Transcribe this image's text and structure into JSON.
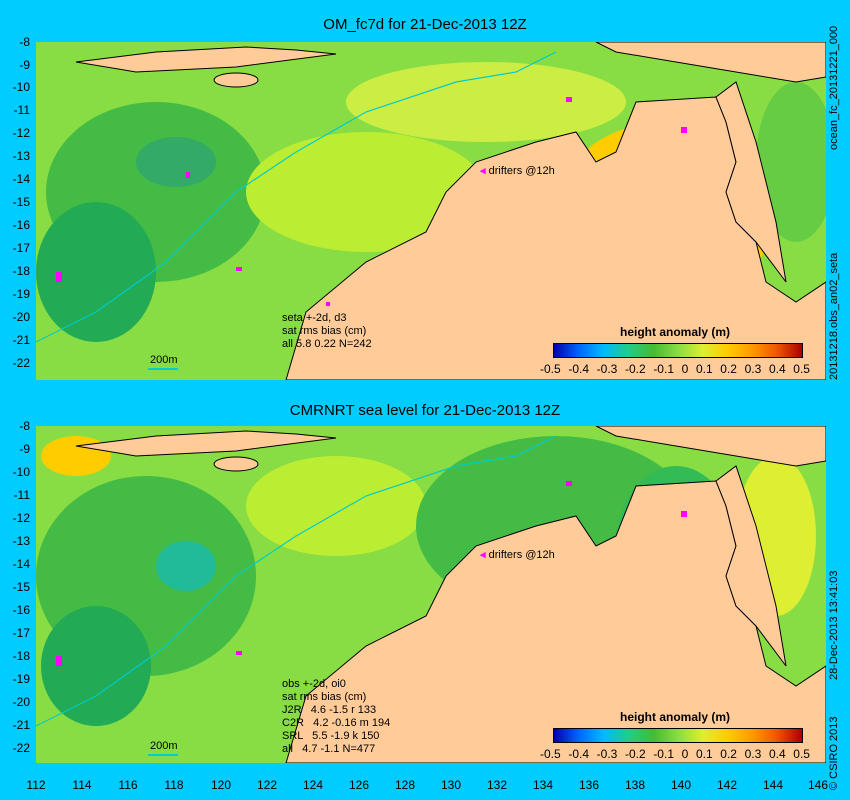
{
  "top": {
    "title": "OM_fc7d for 21-Dec-2013 12Z",
    "side_label_1": "ocean_fc_20131221_000",
    "side_label_2": "20131218.obs_an02_seta",
    "stats": "seta +-2d, d3\nsat rms bias (cm)\nall 5.8 0.22 N=242",
    "legend": "drifters @12h",
    "scale": "200m",
    "colorbar_title": "height anomaly (m)"
  },
  "bottom": {
    "title": "CMRNRT sea level  for 21-Dec-2013 12Z",
    "side_label_1": "28-Dec-2013 13:41:03",
    "side_label_2": "© CSIRO 2013",
    "stats": "obs +-2d, oi0\nsat rms bias (cm)\nJ2R   4.6 -1.5 r 133\nC2R   4.2 -0.16 m 194\nSRL   5.5 -1.9 k 150\nall   4.7 -1.1 N=477",
    "legend": "drifters @12h",
    "scale": "200m",
    "colorbar_title": "height anomaly (m)"
  },
  "colorbar_ticks": [
    "-0.5",
    "-0.4",
    "-0.3",
    "-0.2",
    "-0.1",
    "0",
    "0.1",
    "0.2",
    "0.3",
    "0.4",
    "0.5"
  ],
  "y_ticks": [
    "-8",
    "-9",
    "-10",
    "-11",
    "-12",
    "-13",
    "-14",
    "-15",
    "-16",
    "-17",
    "-18",
    "-19",
    "-20",
    "-21",
    "-22"
  ],
  "x_ticks": [
    "112",
    "114",
    "116",
    "118",
    "120",
    "122",
    "124",
    "126",
    "128",
    "130",
    "132",
    "134",
    "136",
    "138",
    "140",
    "142",
    "144",
    "146"
  ],
  "colors": {
    "background": "#00ccff",
    "land": "#ffcc99",
    "anomaly_low": "#0000aa",
    "anomaly_high": "#aa0000",
    "drifter": "#ff00ff",
    "isobath": "#00cccc"
  }
}
